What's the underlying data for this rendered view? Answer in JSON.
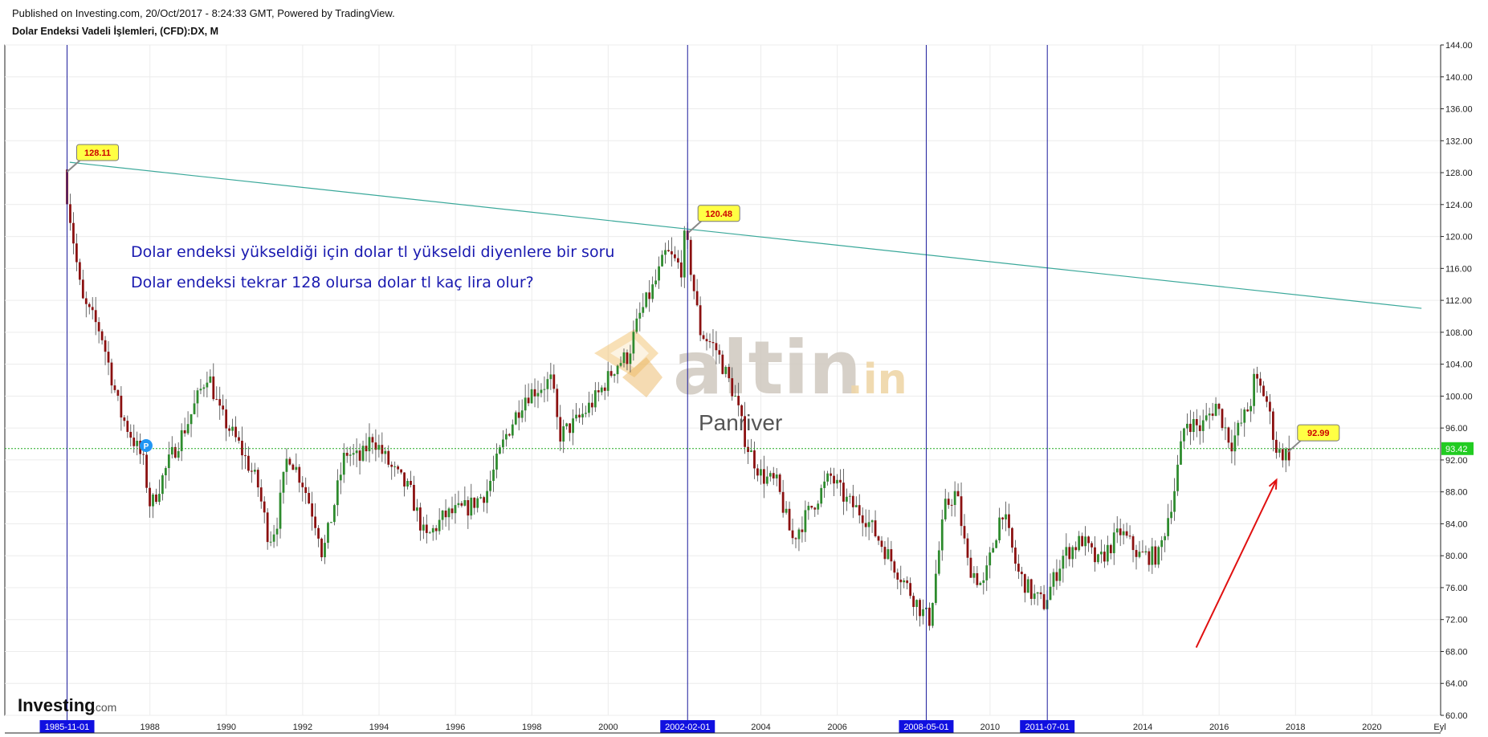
{
  "header": {
    "published": "Published on Investing.com, 20/Oct/2017 - 8:24:33 GMT, Powered by TradingView.",
    "instrument": "Dolar Endeksi Vadeli İşlemleri, (CFD):DX, M"
  },
  "brand": {
    "logo_main": "Investing",
    "logo_suffix": ".com"
  },
  "watermark": {
    "brand": "altin",
    "tld": ".in",
    "author": "Panriver"
  },
  "annotations": {
    "question_line1": "Dolar endeksi yükseldiği için dolar tl yükseldi diyenlere bir soru",
    "question_line2": "Dolar endeksi tekrar 128 olursa dolar tl kaç lira olur?"
  },
  "colors": {
    "up": "#2e8b2e",
    "down": "#8b1010",
    "trendline": "#3aa89a",
    "vline": "#1c1c9c",
    "vline_label_bg": "#1010e0",
    "price_line": "#22aa22",
    "price_badge_bg": "#22cc22",
    "callout_bg": "#ffff44",
    "callout_text": "#cc0000",
    "question_text": "#1a1ab0",
    "arrow": "#e01010",
    "grid": "#ececec"
  },
  "chart_data": {
    "type": "candlestick",
    "title": "Dolar Endeksi Vadeli İşlemleri, (CFD):DX, M",
    "timeframe": "M",
    "xlim": [
      1984.2,
      2021.8
    ],
    "ylim": [
      60,
      144
    ],
    "x_ticks": [
      "1988",
      "1990",
      "1992",
      "1994",
      "1996",
      "1998",
      "2000",
      "2004",
      "2006",
      "2010",
      "2014",
      "2016",
      "2018",
      "2020"
    ],
    "x_tick_values": [
      1988,
      1990,
      1992,
      1994,
      1996,
      1998,
      2000,
      2004,
      2006,
      2010,
      2014,
      2016,
      2018,
      2020
    ],
    "x_end_label": "Eyl",
    "y_ticks": [
      "144.00",
      "140.00",
      "136.00",
      "132.00",
      "128.00",
      "124.00",
      "120.00",
      "116.00",
      "112.00",
      "108.00",
      "104.00",
      "100.00",
      "96.00",
      "92.00",
      "88.00",
      "84.00",
      "80.00",
      "76.00",
      "72.00",
      "68.00",
      "64.00",
      "60.00"
    ],
    "y_tick_values": [
      144,
      140,
      136,
      132,
      128,
      124,
      120,
      116,
      112,
      108,
      104,
      100,
      96,
      92,
      88,
      84,
      80,
      76,
      72,
      68,
      64,
      60
    ],
    "price_path": [
      [
        1985.83,
        128.1
      ],
      [
        1986.3,
        112
      ],
      [
        1986.8,
        108
      ],
      [
        1987.3,
        98
      ],
      [
        1987.9,
        92
      ],
      [
        1988.1,
        86
      ],
      [
        1988.6,
        92
      ],
      [
        1989.1,
        97
      ],
      [
        1989.6,
        103
      ],
      [
        1989.9,
        98
      ],
      [
        1990.4,
        94
      ],
      [
        1990.9,
        89
      ],
      [
        1991.2,
        82
      ],
      [
        1991.4,
        84
      ],
      [
        1991.7,
        93
      ],
      [
        1992.1,
        89
      ],
      [
        1992.5,
        83
      ],
      [
        1992.6,
        80
      ],
      [
        1992.8,
        84
      ],
      [
        1993.2,
        93
      ],
      [
        1993.6,
        92
      ],
      [
        1993.9,
        95
      ],
      [
        1994.4,
        91
      ],
      [
        1994.9,
        88
      ],
      [
        1995.3,
        82
      ],
      [
        1995.8,
        85
      ],
      [
        1996.4,
        86
      ],
      [
        1996.9,
        88
      ],
      [
        1997.4,
        95
      ],
      [
        1997.9,
        100
      ],
      [
        1998.6,
        102
      ],
      [
        1998.8,
        95
      ],
      [
        1999.3,
        97
      ],
      [
        1999.8,
        100
      ],
      [
        2000.3,
        104
      ],
      [
        2000.6,
        105
      ],
      [
        2000.9,
        110
      ],
      [
        2001.3,
        114
      ],
      [
        2001.6,
        118
      ],
      [
        2002.0,
        116
      ],
      [
        2002.1,
        120.5
      ],
      [
        2002.5,
        108
      ],
      [
        2002.9,
        106
      ],
      [
        2003.4,
        100
      ],
      [
        2003.7,
        94
      ],
      [
        2004.1,
        90
      ],
      [
        2004.5,
        89
      ],
      [
        2004.9,
        82
      ],
      [
        2005.4,
        86
      ],
      [
        2005.9,
        90
      ],
      [
        2006.3,
        87
      ],
      [
        2006.8,
        85
      ],
      [
        2007.3,
        81
      ],
      [
        2007.8,
        77
      ],
      [
        2008.3,
        73
      ],
      [
        2008.5,
        72
      ],
      [
        2008.9,
        86
      ],
      [
        2009.2,
        88
      ],
      [
        2009.5,
        79
      ],
      [
        2009.9,
        76
      ],
      [
        2010.4,
        86
      ],
      [
        2010.8,
        78
      ],
      [
        2011.2,
        75
      ],
      [
        2011.5,
        74
      ],
      [
        2012.0,
        80
      ],
      [
        2012.5,
        82
      ],
      [
        2012.9,
        79
      ],
      [
        2013.5,
        83
      ],
      [
        2014.0,
        80
      ],
      [
        2014.5,
        80
      ],
      [
        2014.9,
        88
      ],
      [
        2015.2,
        97
      ],
      [
        2015.6,
        96
      ],
      [
        2016.0,
        99
      ],
      [
        2016.4,
        94
      ],
      [
        2016.9,
        99
      ],
      [
        2017.0,
        102
      ],
      [
        2017.3,
        100
      ],
      [
        2017.6,
        93
      ],
      [
        2017.8,
        92.8
      ]
    ],
    "last_price": 93.42,
    "last_price_label": "93.42",
    "callouts": [
      {
        "x": 1985.83,
        "y": 128.11,
        "label": "128.11"
      },
      {
        "x": 2002.1,
        "y": 120.48,
        "label": "120.48"
      },
      {
        "x": 2017.8,
        "y": 92.99,
        "label": "92.99"
      }
    ],
    "vertical_markers": [
      {
        "x": 1985.83,
        "label": "1985-11-01"
      },
      {
        "x": 2002.08,
        "label": "2002-02-01"
      },
      {
        "x": 2008.33,
        "label": "2008-05-01"
      },
      {
        "x": 2011.5,
        "label": "2011-07-01"
      }
    ],
    "trendline": {
      "from": [
        1985.9,
        129.3
      ],
      "to": [
        2021.3,
        111
      ]
    },
    "arrow": {
      "from": [
        2015.4,
        68.5
      ],
      "to": [
        2017.5,
        89.5
      ]
    },
    "event_marker": {
      "x": 1987.9,
      "y": 93.8,
      "label": "P"
    },
    "grid": true
  }
}
